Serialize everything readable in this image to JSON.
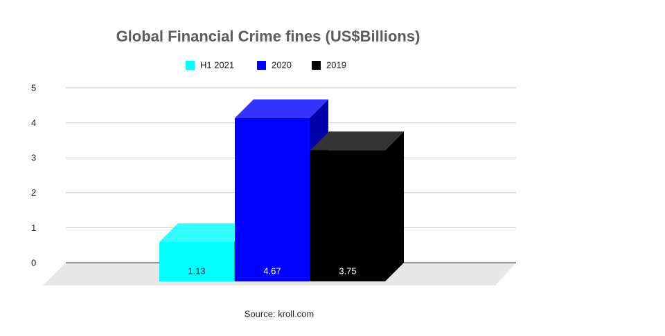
{
  "chart_data": {
    "type": "bar3d",
    "title": "Global Financial Crime fines (US$Billions)",
    "categories": [
      null
    ],
    "series": [
      {
        "name": "H1 2021",
        "color": "#00ffff",
        "values": [
          1.13
        ]
      },
      {
        "name": "2020",
        "color": "#0000ff",
        "values": [
          4.67
        ]
      },
      {
        "name": "2019",
        "color": "#000000",
        "values": [
          3.75
        ]
      }
    ],
    "ylim": [
      0,
      5
    ],
    "yticks": [
      0,
      1,
      2,
      3,
      4,
      5
    ],
    "grid": true,
    "legend": "top",
    "source": "Source: kroll.com"
  }
}
